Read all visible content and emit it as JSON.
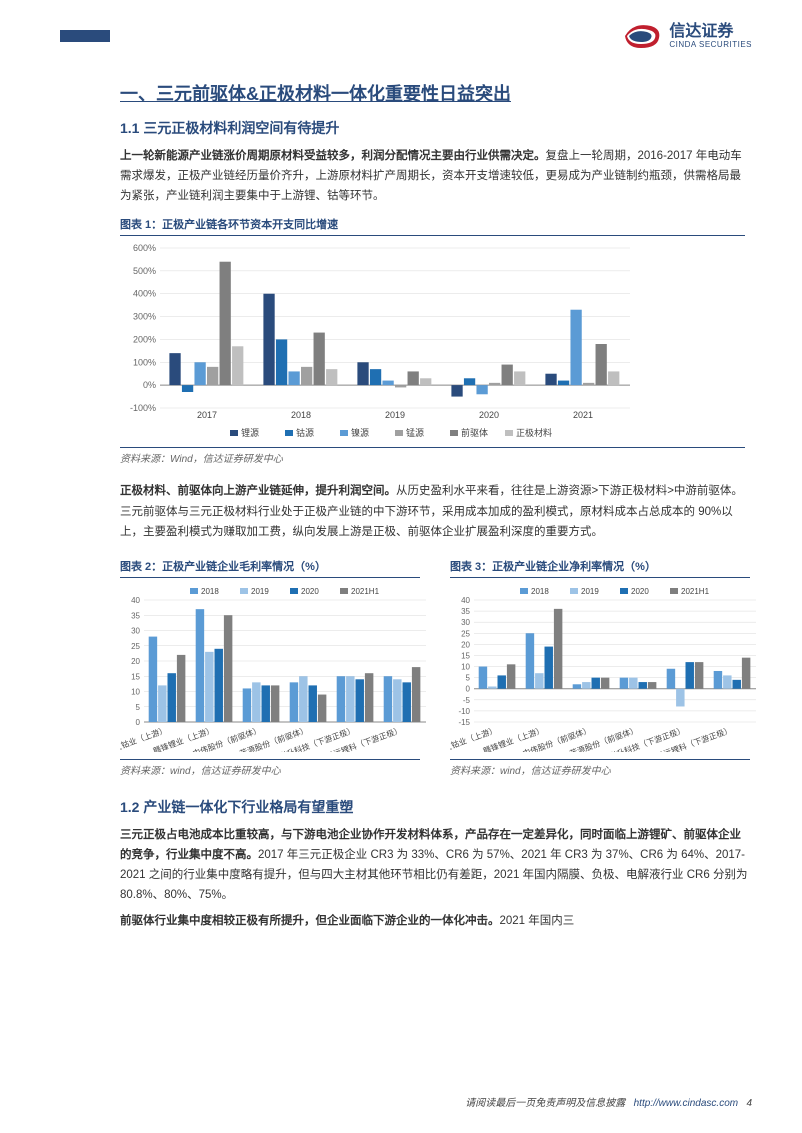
{
  "brand": {
    "name_cn": "信达证券",
    "name_en": "CINDA SECURITIES",
    "primary_color": "#2a4b7c",
    "accent_color": "#c01f2e"
  },
  "section": {
    "title": "一、三元前驱体&正极材料一体化重要性日益突出",
    "sub1": "1.1 三元正极材料利润空间有待提升",
    "para1_bold": "上一轮新能源产业链涨价周期原材料受益较多，利润分配情况主要由行业供需决定。",
    "para1_rest": "复盘上一轮周期，2016-2017 年电动车需求爆发，正极产业链经历量价齐升，上游原材料扩产周期长，资本开支增速较低，更易成为产业链制约瓶颈，供需格局最为紧张，产业链利润主要集中于上游锂、钴等环节。",
    "para2_bold": "正极材料、前驱体向上游产业链延伸，提升利润空间。",
    "para2_rest": "从历史盈利水平来看，往往是上游资源>下游正极材料>中游前驱体。三元前驱体与三元正极材料行业处于正极产业链的中下游环节，采用成本加成的盈利模式，原材料成本占总成本的 90%以上，主要盈利模式为赚取加工费，纵向发展上游是正极、前驱体企业扩展盈利深度的重要方式。",
    "sub2": "1.2 产业链一体化下行业格局有望重塑",
    "para3_bold": "三元正极占电池成本比重较高，与下游电池企业协作开发材料体系，产品存在一定差异化，同时面临上游锂矿、前驱体企业的竞争，行业集中度不高。",
    "para3_rest": "2017 年三元正极企业 CR3 为 33%、CR6 为 57%、2021 年 CR3 为 37%、CR6 为 64%、2017-2021 之间的行业集中度略有提升，但与四大主材其他环节相比仍有差距，2021 年国内隔膜、负极、电解液行业 CR6 分别为 80.8%、80%、75%。",
    "para4_bold": "前驱体行业集中度相较正极有所提升，但企业面临下游企业的一体化冲击。",
    "para4_rest": "2021 年国内三"
  },
  "chart1": {
    "title": "图表 1：正极产业链各环节资本开支同比增速",
    "source": "资料来源：Wind，信达证券研发中心",
    "type": "bar",
    "ylim": [
      -100,
      600
    ],
    "ytick_step": 100,
    "categories": [
      "2017",
      "2018",
      "2019",
      "2020",
      "2021"
    ],
    "series": [
      {
        "name": "锂源",
        "color": "#2a4b7c",
        "values": [
          140,
          400,
          100,
          -50,
          50
        ]
      },
      {
        "name": "钴源",
        "color": "#1f6fb2",
        "values": [
          -30,
          200,
          70,
          30,
          20
        ]
      },
      {
        "name": "镍源",
        "color": "#5b9bd5",
        "values": [
          100,
          60,
          20,
          -40,
          330
        ]
      },
      {
        "name": "锰源",
        "color": "#a0a0a0",
        "values": [
          80,
          80,
          -10,
          10,
          10
        ]
      },
      {
        "name": "前驱体",
        "color": "#7f7f7f",
        "values": [
          540,
          230,
          60,
          90,
          180
        ]
      },
      {
        "name": "正极材料",
        "color": "#bfbfbf",
        "values": [
          170,
          70,
          30,
          60,
          60
        ]
      }
    ],
    "background": "#ffffff",
    "grid_color": "#d9d9d9",
    "font_size": 9
  },
  "chart2": {
    "title": "图表 2：正极产业链企业毛利率情况（%）",
    "source": "资料来源：wind，信达证券研发中心",
    "type": "bar",
    "ylim": [
      0,
      40
    ],
    "ytick_step": 5,
    "categories": [
      "华友钴业（上游）",
      "赣锋锂业（上游）",
      "中伟股份（前驱体）",
      "芳源股份（前驱体）",
      "当升科技（下游正极）",
      "长远锂科（下游正极）"
    ],
    "series": [
      {
        "name": "2018",
        "color": "#5b9bd5",
        "values": [
          28,
          37,
          11,
          13,
          15,
          15
        ]
      },
      {
        "name": "2019",
        "color": "#9dc3e6",
        "values": [
          12,
          23,
          13,
          15,
          15,
          14
        ]
      },
      {
        "name": "2020",
        "color": "#1f6fb2",
        "values": [
          16,
          24,
          12,
          12,
          14,
          13
        ]
      },
      {
        "name": "2021H1",
        "color": "#7f7f7f",
        "values": [
          22,
          35,
          12,
          9,
          16,
          18
        ]
      }
    ],
    "font_size": 8
  },
  "chart3": {
    "title": "图表 3：正极产业链企业净利率情况（%）",
    "source": "资料来源：wind，信达证券研发中心",
    "type": "bar",
    "ylim": [
      -15,
      40
    ],
    "ytick_step": 5,
    "categories": [
      "华友钴业（上游）",
      "赣锋锂业（上游）",
      "中伟股份（前驱体）",
      "芳源股份（前驱体）",
      "当升科技（下游正极）",
      "长远锂科（下游正极）"
    ],
    "series": [
      {
        "name": "2018",
        "color": "#5b9bd5",
        "values": [
          10,
          25,
          2,
          5,
          9,
          8
        ]
      },
      {
        "name": "2019",
        "color": "#9dc3e6",
        "values": [
          1,
          7,
          3,
          5,
          -8,
          6
        ]
      },
      {
        "name": "2020",
        "color": "#1f6fb2",
        "values": [
          6,
          19,
          5,
          3,
          12,
          4
        ]
      },
      {
        "name": "2021H1",
        "color": "#7f7f7f",
        "values": [
          11,
          36,
          5,
          3,
          12,
          14
        ]
      }
    ],
    "font_size": 8
  },
  "footer": {
    "text": "请阅读最后一页免责声明及信息披露",
    "url": "http://www.cindasc.com",
    "page": "4"
  }
}
